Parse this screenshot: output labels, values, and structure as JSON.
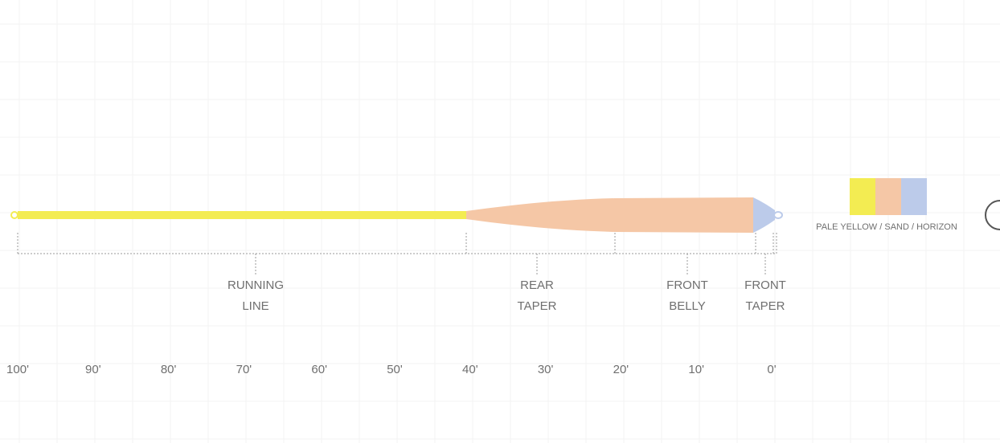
{
  "sections": [
    {
      "lines": [
        "RUNNING",
        "LINE"
      ]
    },
    {
      "lines": [
        "REAR",
        "TAPER"
      ]
    },
    {
      "lines": [
        "FRONT",
        "BELLY"
      ]
    },
    {
      "lines": [
        "FRONT",
        "TAPER"
      ]
    }
  ],
  "distances": [
    "100'",
    "90'",
    "80'",
    "70'",
    "60'",
    "50'",
    "40'",
    "30'",
    "20'",
    "10'",
    "0'"
  ],
  "legend": {
    "colors": [
      "#f3ec52",
      "#f5c7a6",
      "#bccbea"
    ],
    "label": "PALE YELLOW / SAND / HORIZON"
  }
}
